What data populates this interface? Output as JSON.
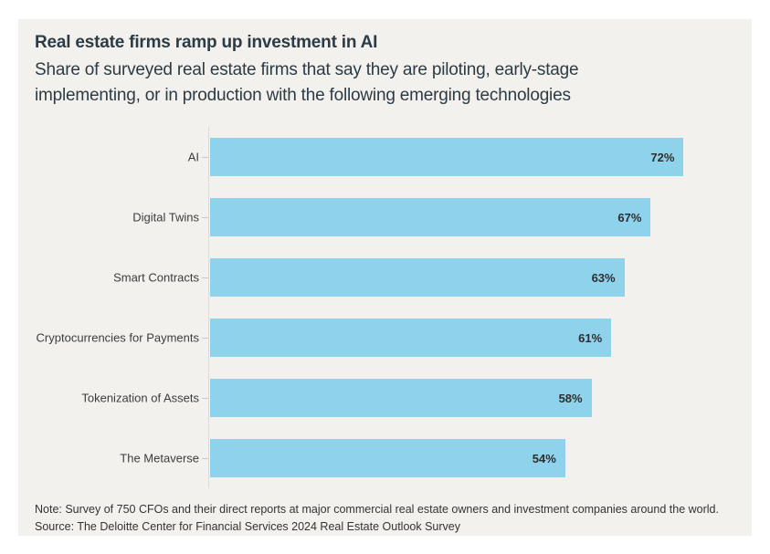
{
  "card": {
    "title": "Real estate firms ramp up investment in AI",
    "subtitle_lines": [
      "Share of surveyed real estate firms that say they are piloting, early-stage",
      "implementing, or in production with the following emerging technologies"
    ],
    "note": "Note: Survey of 750 CFOs and their direct reports at major commercial real estate owners and investment companies around the world.",
    "source": "Source: The Deloitte Center for Financial Services 2024 Real Estate Outlook Survey"
  },
  "chart_data": {
    "type": "bar",
    "orientation": "horizontal",
    "title": "Real estate firms ramp up investment in AI",
    "categories": [
      "AI",
      "Digital Twins",
      "Smart Contracts",
      "Cryptocurrencies for Payments",
      "Tokenization of Assets",
      "The Metaverse"
    ],
    "values": [
      72,
      67,
      63,
      61,
      58,
      54
    ],
    "value_labels": [
      "72%",
      "67%",
      "63%",
      "61%",
      "58%",
      "54%"
    ],
    "value_unit": "%",
    "xlabel": "",
    "ylabel": "",
    "xlim": [
      0,
      82
    ],
    "grid": false,
    "legend": "none",
    "value_label_position": "inside-end"
  },
  "colors": {
    "bar_fill": "#8ed2ec",
    "card_background": "#f2f1ee",
    "page_background": "#ffffff",
    "title_text": "#2d3b44",
    "label_text": "#3c3c3c",
    "value_text": "#2e2e2e",
    "axis_line": "#dcdbd8"
  }
}
